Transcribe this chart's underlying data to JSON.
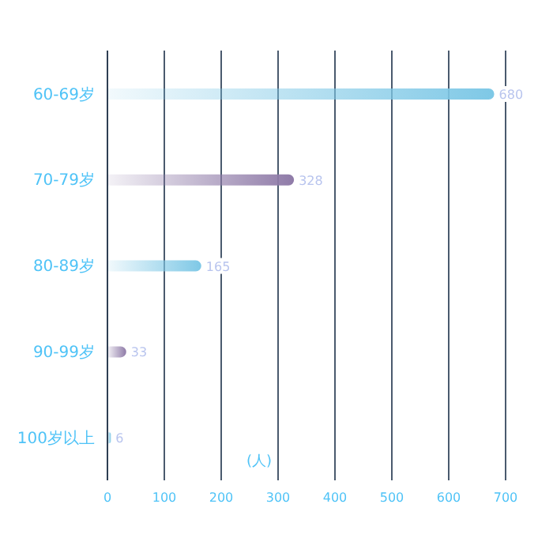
{
  "chart_data": {
    "type": "bar",
    "orientation": "horizontal",
    "xlabel": "(人)",
    "categories": [
      "60-69岁",
      "70-79岁",
      "80-89岁",
      "90-99岁",
      "100岁以上"
    ],
    "values": [
      680,
      328,
      165,
      33,
      6
    ],
    "colors": [
      "#7ec8e6",
      "#8f7ba8",
      "#7ec8e6",
      "#8f7ba8",
      "#7ec8e6"
    ],
    "xlim": [
      0,
      700
    ],
    "xticks": [
      0,
      100,
      200,
      300,
      400,
      500,
      600,
      700
    ],
    "grid": "x",
    "data_labels": true
  }
}
